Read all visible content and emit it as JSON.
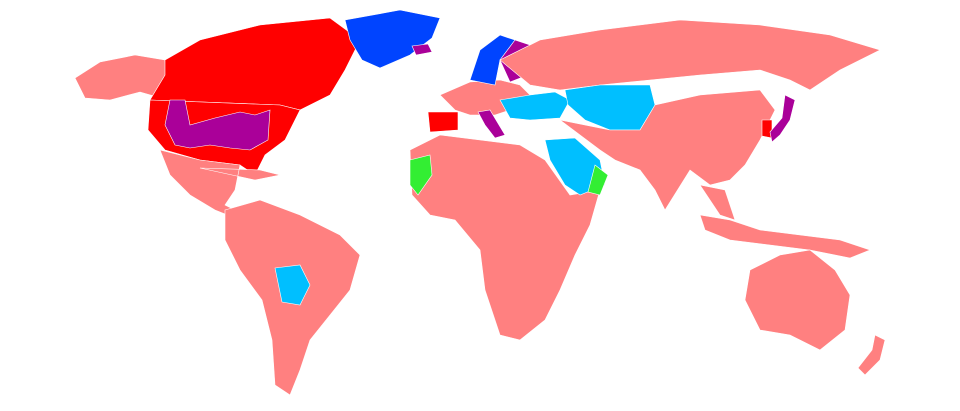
{
  "map": {
    "projection": "world",
    "colors": {
      "default": "#FF8080",
      "red": "#FF0000",
      "blue": "#0044FF",
      "purple": "#AA0099",
      "light_blue": "#00BFFF",
      "green": "#33EE33",
      "ocean": "#FFFFFF"
    },
    "regions": [
      {
        "name": "alaska",
        "color": "default"
      },
      {
        "name": "canada",
        "color": "red"
      },
      {
        "name": "united-states",
        "color": "red"
      },
      {
        "name": "us-states-purple",
        "color": "purple"
      },
      {
        "name": "mexico-central-america",
        "color": "default"
      },
      {
        "name": "greenland",
        "color": "blue"
      },
      {
        "name": "iceland",
        "color": "purple"
      },
      {
        "name": "south-america",
        "color": "default"
      },
      {
        "name": "bolivia",
        "color": "light_blue"
      },
      {
        "name": "spain",
        "color": "red"
      },
      {
        "name": "europe",
        "color": "default"
      },
      {
        "name": "scandinavia",
        "color": "blue"
      },
      {
        "name": "finland-baltics",
        "color": "purple"
      },
      {
        "name": "italy",
        "color": "purple"
      },
      {
        "name": "balkans-turkey",
        "color": "light_blue"
      },
      {
        "name": "africa",
        "color": "default"
      },
      {
        "name": "western-sahara",
        "color": "green"
      },
      {
        "name": "arabia",
        "color": "light_blue"
      },
      {
        "name": "oman",
        "color": "green"
      },
      {
        "name": "russia",
        "color": "default"
      },
      {
        "name": "kazakhstan-central-asia",
        "color": "light_blue"
      },
      {
        "name": "asia",
        "color": "default"
      },
      {
        "name": "korea",
        "color": "red"
      },
      {
        "name": "japan",
        "color": "purple"
      },
      {
        "name": "indonesia",
        "color": "default"
      },
      {
        "name": "australia",
        "color": "default"
      },
      {
        "name": "new-zealand",
        "color": "default"
      }
    ]
  }
}
